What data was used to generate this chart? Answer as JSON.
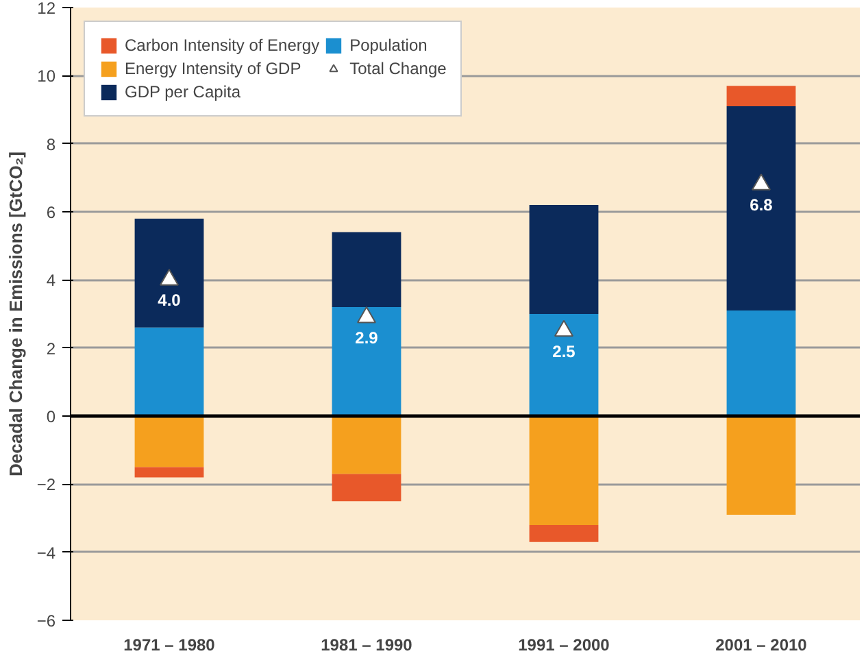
{
  "chart_data": {
    "type": "bar",
    "stacked": true,
    "ylabel": "Decadal Change in Emissions [GtCO₂]",
    "categories": [
      "1971 – 1980",
      "1981 – 1990",
      "1991 – 2000",
      "2001 – 2010"
    ],
    "series": [
      {
        "name": "Population",
        "color": "#1b8fd0",
        "values": [
          2.6,
          3.2,
          3.0,
          3.1
        ]
      },
      {
        "name": "GDP per Capita",
        "color": "#0b2a5b",
        "values": [
          3.2,
          2.2,
          3.2,
          6.0
        ]
      },
      {
        "name": "Energy Intensity of GDP",
        "color": "#f5a01e",
        "values": [
          -1.5,
          -1.7,
          -3.2,
          -2.9
        ]
      },
      {
        "name": "Carbon Intensity of Energy",
        "color": "#e8582a",
        "values": [
          -0.3,
          -0.8,
          -0.5,
          0.6
        ]
      },
      {
        "name": "Total Change",
        "type": "scatter",
        "marker": "triangle",
        "color": "#ffffff",
        "values": [
          4.0,
          2.9,
          2.5,
          6.8
        ],
        "value_labels": [
          "4.0",
          "2.9",
          "2.5",
          "6.8"
        ]
      }
    ],
    "ylim": [
      -6,
      12
    ],
    "yticks": [
      -6,
      -4,
      -2,
      0,
      2,
      4,
      6,
      8,
      10,
      12
    ],
    "grid": "y",
    "legend": "top left",
    "ref_lines": [
      {
        "axis": "y",
        "value": 0,
        "color": "#000000"
      }
    ]
  }
}
